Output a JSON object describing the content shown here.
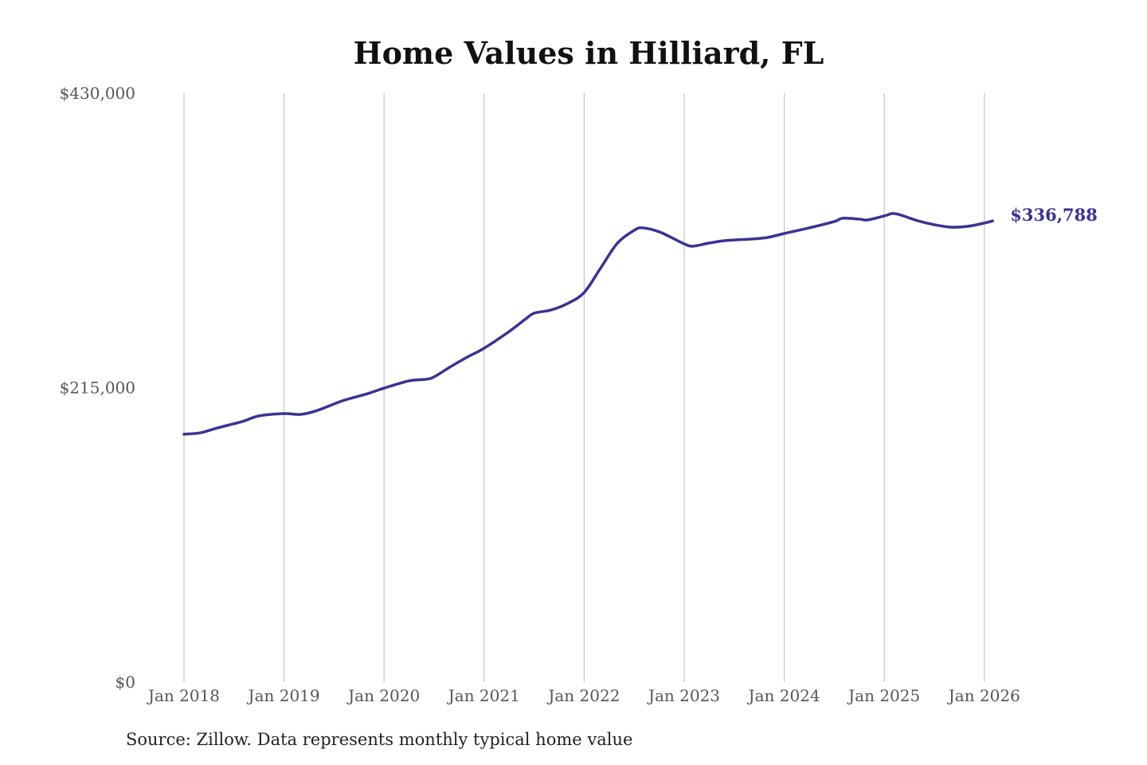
{
  "chart_data": {
    "type": "line",
    "title": "Home Values in Hilliard, FL",
    "source": "Source: Zillow. Data represents monthly typical home value",
    "xlabel": "",
    "ylabel": "",
    "ylim": [
      0,
      430000
    ],
    "yticks": [
      0,
      215000,
      430000
    ],
    "ytick_labels": [
      "$0",
      "$215,000",
      "$430,000"
    ],
    "xticks": [
      "2018-01",
      "2019-01",
      "2020-01",
      "2021-01",
      "2022-01",
      "2023-01",
      "2024-01",
      "2025-01",
      "2026-01"
    ],
    "xtick_labels": [
      "Jan 2018",
      "Jan 2019",
      "Jan 2020",
      "Jan 2021",
      "Jan 2022",
      "Jan 2023",
      "Jan 2024",
      "Jan 2025",
      "Jan 2026"
    ],
    "grid": "vertical",
    "line_color": "#3a3392",
    "end_label": "$336,788",
    "series": [
      {
        "x": [
          "2018-01",
          "2018-03",
          "2018-05",
          "2018-08",
          "2018-10",
          "2019-01",
          "2019-03",
          "2019-05",
          "2019-08",
          "2019-11",
          "2020-01",
          "2020-04",
          "2020-06",
          "2020-07",
          "2020-09",
          "2020-11",
          "2021-01",
          "2021-04",
          "2021-06",
          "2021-07",
          "2021-09",
          "2021-11",
          "2022-01",
          "2022-03",
          "2022-05",
          "2022-07",
          "2022-08",
          "2022-10",
          "2022-12",
          "2023-01",
          "2023-02",
          "2023-04",
          "2023-06",
          "2023-09",
          "2023-11",
          "2024-01",
          "2024-04",
          "2024-07",
          "2024-08",
          "2024-10",
          "2024-11",
          "2025-01",
          "2025-02",
          "2025-03",
          "2025-05",
          "2025-07",
          "2025-09",
          "2025-11",
          "2026-01",
          "2026-02"
        ],
        "values": [
          181000,
          182100,
          185600,
          190300,
          194400,
          196100,
          195500,
          198400,
          205400,
          210600,
          214700,
          220000,
          221100,
          222900,
          230400,
          237400,
          243800,
          256000,
          265300,
          269400,
          271700,
          276400,
          284500,
          302600,
          320600,
          329900,
          331700,
          328800,
          323000,
          320000,
          318300,
          320600,
          322400,
          323500,
          324700,
          327600,
          331700,
          336300,
          338700,
          338100,
          337500,
          340400,
          342200,
          341000,
          336900,
          334000,
          332200,
          332800,
          335200,
          336788
        ]
      }
    ]
  }
}
